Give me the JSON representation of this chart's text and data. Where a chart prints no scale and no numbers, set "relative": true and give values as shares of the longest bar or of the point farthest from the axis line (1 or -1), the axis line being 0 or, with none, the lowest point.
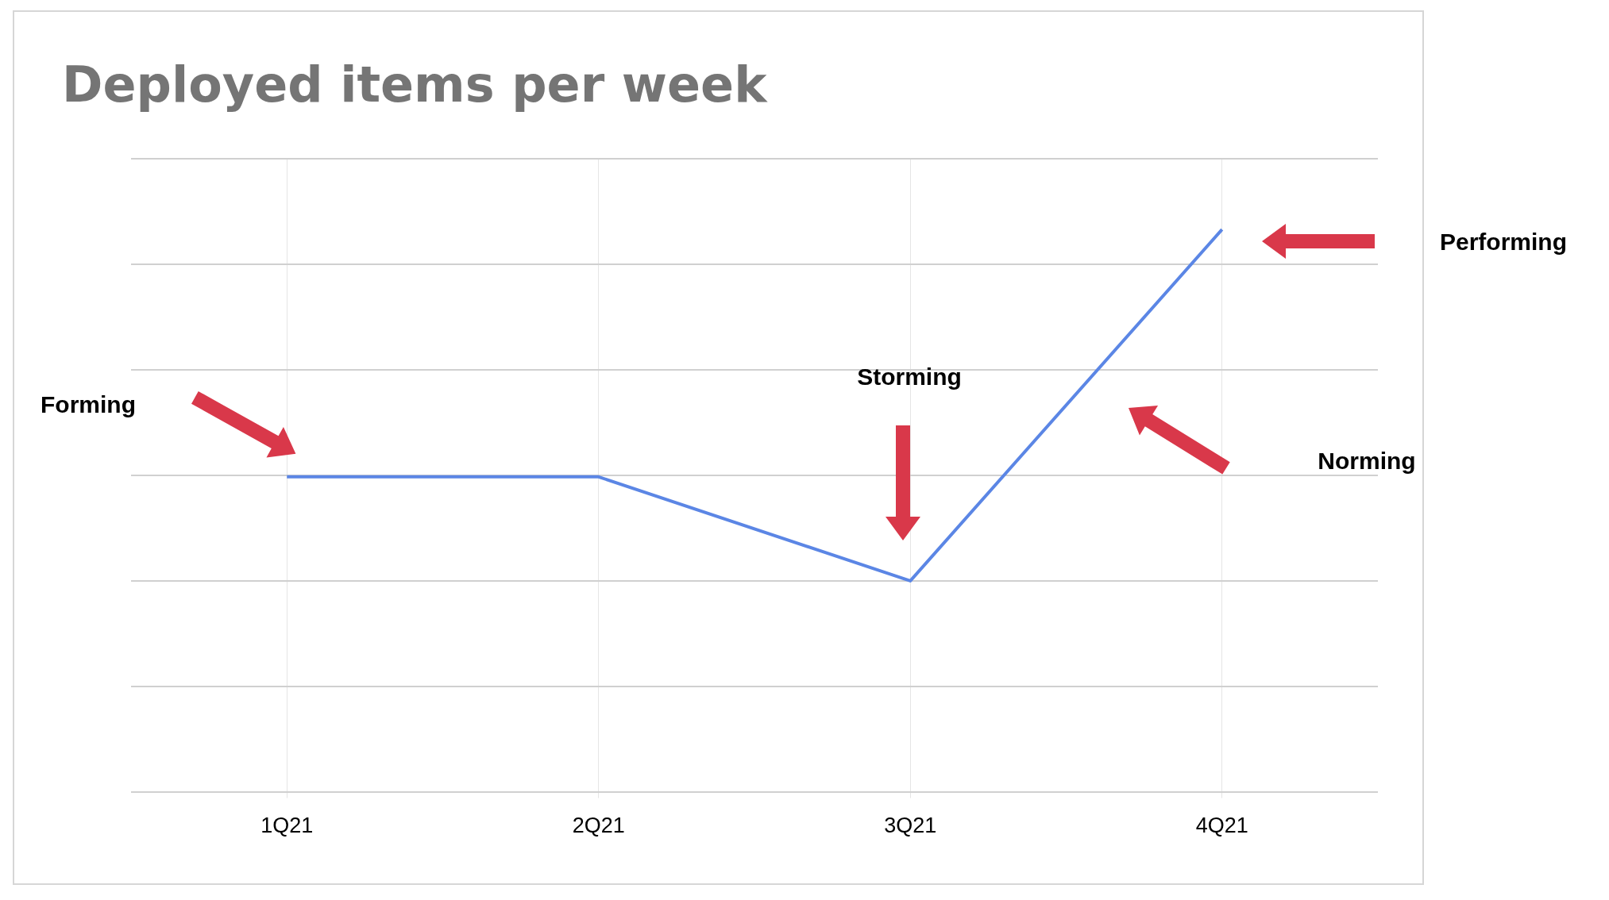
{
  "chart_data": {
    "type": "line",
    "title": "Deployed items per week",
    "relative": true,
    "grid": true,
    "legend": false,
    "marker": "none",
    "line_style": "solid",
    "categories": [
      "1Q21",
      "2Q21",
      "3Q21",
      "4Q21"
    ],
    "series": [
      {
        "color": "#5b86e5",
        "values": [
          0.56,
          0.56,
          0.375,
          1
        ]
      }
    ],
    "annotations": [
      "Forming",
      "Storming",
      "Norming",
      "Performing"
    ]
  }
}
